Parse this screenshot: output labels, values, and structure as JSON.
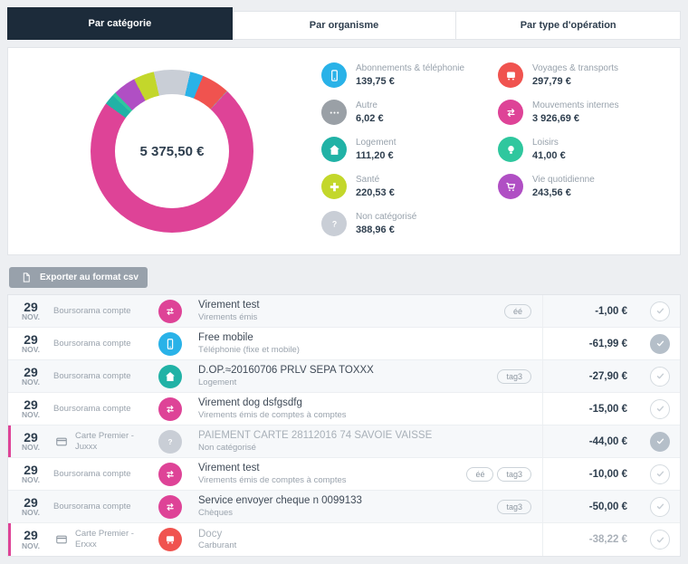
{
  "tabs": [
    {
      "label": "Par catégorie",
      "active": true
    },
    {
      "label": "Par organisme",
      "active": false
    },
    {
      "label": "Par type d'opération",
      "active": false
    }
  ],
  "chart_data": {
    "type": "donut",
    "title": "Dépenses par catégorie",
    "total": 5375.5,
    "center_label": "5 375,50 €",
    "segments": [
      {
        "name": "Non catégorisé",
        "value": 388.96,
        "color": "#c9ced6"
      },
      {
        "name": "Abonnements & téléphonie",
        "value": 139.75,
        "color": "#29b2e8"
      },
      {
        "name": "Voyages & transports",
        "value": 297.79,
        "color": "#f0534f"
      },
      {
        "name": "Autre",
        "value": 6.02,
        "color": "#9aa0a6"
      },
      {
        "name": "Mouvements internes",
        "value": 3926.69,
        "color": "#de4397"
      },
      {
        "name": "Logement",
        "value": 111.2,
        "color": "#21b2a6"
      },
      {
        "name": "Loisirs",
        "value": 41.0,
        "color": "#2fc79e"
      },
      {
        "name": "Vie quotidienne",
        "value": 243.56,
        "color": "#b04fc4"
      },
      {
        "name": "Santé",
        "value": 220.53,
        "color": "#c3d72b"
      }
    ]
  },
  "legend": {
    "columns": [
      [
        {
          "label": "Abonnements & téléphonie",
          "value": "139,75 €",
          "icon": "mobile",
          "color": "#29b2e8"
        },
        {
          "label": "Autre",
          "value": "6,02 €",
          "icon": "ellipsis",
          "color": "#9aa0a6"
        },
        {
          "label": "Logement",
          "value": "111,20 €",
          "icon": "home",
          "color": "#21b2a6"
        },
        {
          "label": "Santé",
          "value": "220,53 €",
          "icon": "plus",
          "color": "#c3d72b"
        },
        {
          "label": "Non catégorisé",
          "value": "388,96 €",
          "icon": "question",
          "color": "#c9ced6"
        }
      ],
      [
        {
          "label": "Voyages & transports",
          "value": "297,79 €",
          "icon": "car",
          "color": "#f0534f"
        },
        {
          "label": "Mouvements internes",
          "value": "3 926,69 €",
          "icon": "transfer",
          "color": "#de4397"
        },
        {
          "label": "Loisirs",
          "value": "41,00 €",
          "icon": "bulb",
          "color": "#2fc79e"
        },
        {
          "label": "Vie quotidienne",
          "value": "243,56 €",
          "icon": "cart",
          "color": "#b04fc4"
        }
      ]
    ]
  },
  "export_button": {
    "label": "Exporter au format csv"
  },
  "icons": {
    "check": "check",
    "card": "card",
    "file": "file"
  },
  "transactions": [
    {
      "day": "29",
      "month": "NOV.",
      "account": "Boursorama compte",
      "icon": "transfer",
      "icon_color": "#de4397",
      "title": "Virement test",
      "subtitle": "Virements émis",
      "tags": [
        "éé"
      ],
      "amount": "-1,00 €",
      "checked": false,
      "pending": false
    },
    {
      "day": "29",
      "month": "NOV.",
      "account": "Boursorama compte",
      "icon": "mobile",
      "icon_color": "#29b2e8",
      "title": "Free mobile",
      "subtitle": "Téléphonie (fixe et mobile)",
      "tags": [],
      "amount": "-61,99 €",
      "checked": true,
      "pending": false
    },
    {
      "day": "29",
      "month": "NOV.",
      "account": "Boursorama compte",
      "icon": "home",
      "icon_color": "#21b2a6",
      "title": "D.OP.≈20160706 PRLV SEPA TOXXX",
      "subtitle": "Logement",
      "tags": [
        "tag3"
      ],
      "amount": "-27,90 €",
      "checked": false,
      "pending": false
    },
    {
      "day": "29",
      "month": "NOV.",
      "account": "Boursorama compte",
      "icon": "transfer",
      "icon_color": "#de4397",
      "title": "Virement dog dsfgsdfg",
      "subtitle": "Virements émis de comptes à comptes",
      "tags": [],
      "amount": "-15,00 €",
      "checked": false,
      "pending": false
    },
    {
      "day": "29",
      "month": "NOV.",
      "account": "Carte Premier - Juxxx",
      "icon": "question",
      "icon_color": "#c9ced6",
      "title": "PAIEMENT CARTE 28112016 74 SAVOIE VAISSE",
      "subtitle": "Non catégorisé",
      "tags": [],
      "amount": "-44,00 €",
      "checked": true,
      "pending": true
    },
    {
      "day": "29",
      "month": "NOV.",
      "account": "Boursorama compte",
      "icon": "transfer",
      "icon_color": "#de4397",
      "title": "Virement test",
      "subtitle": "Virements émis de comptes à comptes",
      "tags": [
        "éé",
        "tag3"
      ],
      "amount": "-10,00 €",
      "checked": false,
      "pending": false
    },
    {
      "day": "29",
      "month": "NOV.",
      "account": "Boursorama compte",
      "icon": "transfer",
      "icon_color": "#de4397",
      "title": "Service envoyer cheque n 0099133",
      "subtitle": "Chèques",
      "tags": [
        "tag3"
      ],
      "amount": "-50,00 €",
      "checked": false,
      "pending": false
    },
    {
      "day": "29",
      "month": "NOV.",
      "account": "Carte Premier - Erxxx",
      "icon": "car",
      "icon_color": "#f0534f",
      "title": "Docy",
      "subtitle": "Carburant",
      "tags": [],
      "amount": "-38,22 €",
      "checked": false,
      "pending": true
    }
  ]
}
